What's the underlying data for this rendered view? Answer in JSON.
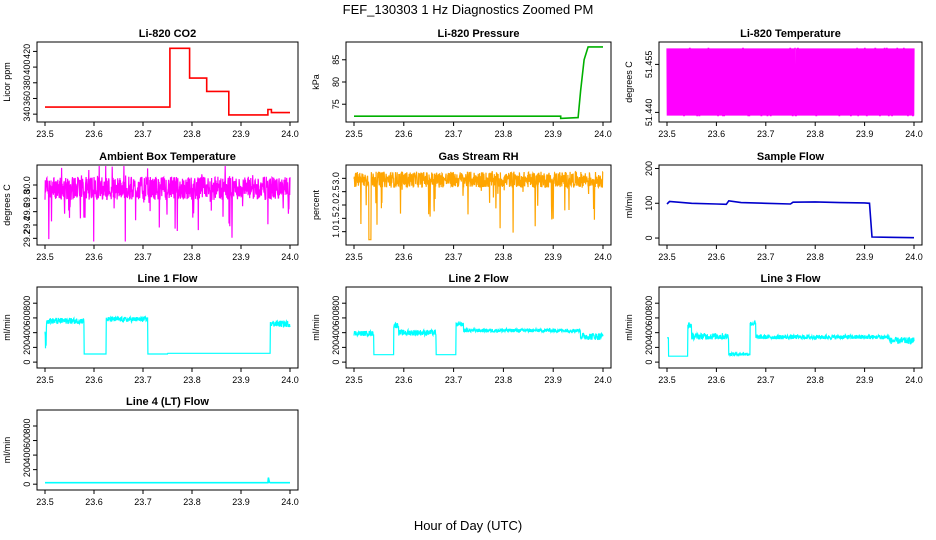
{
  "figure": {
    "title": "FEF_130303  1 Hz Diagnostics Zoomed PM",
    "xlabel": "Hour of Day (UTC)"
  },
  "chart_data": [
    {
      "type": "line",
      "title": "Li-820 CO2",
      "xlabel": "",
      "ylabel": "Licor ppm",
      "color": "#ff0000",
      "xlim": [
        23.5,
        24.0
      ],
      "ylim": [
        330,
        432
      ],
      "xticks": [
        "23.5",
        "23.6",
        "23.7",
        "23.8",
        "23.9",
        "24.0"
      ],
      "yticks": [
        "340",
        "360",
        "380",
        "400",
        "420"
      ],
      "series": [
        {
          "x": [
            23.5,
            23.755,
            23.755,
            23.795,
            23.795,
            23.83,
            23.83,
            23.875,
            23.875,
            23.955,
            23.955,
            23.962,
            23.962,
            24.0
          ],
          "y": [
            349,
            349,
            424,
            424,
            386,
            386,
            369,
            369,
            339,
            339,
            346,
            346,
            342,
            342
          ]
        }
      ]
    },
    {
      "type": "line",
      "title": "Li-820 Pressure",
      "xlabel": "",
      "ylabel": "kPa",
      "color": "#00b000",
      "xlim": [
        23.5,
        24.0
      ],
      "ylim": [
        71,
        89
      ],
      "xticks": [
        "23.5",
        "23.6",
        "23.7",
        "23.8",
        "23.9",
        "24.0"
      ],
      "yticks": [
        "75",
        "80",
        "85"
      ],
      "series": [
        {
          "x": [
            23.5,
            23.915,
            23.915,
            23.95,
            23.955,
            23.962,
            23.97,
            24.0
          ],
          "y": [
            72.3,
            72.3,
            71.8,
            72.0,
            78,
            85,
            87.9,
            87.9
          ]
        }
      ]
    },
    {
      "type": "line",
      "title": "Li-820 Temperature",
      "xlabel": "",
      "ylabel": "degrees C",
      "color": "#ff00ff",
      "xlim": [
        23.5,
        24.0
      ],
      "ylim": [
        51.437,
        51.462
      ],
      "xticks": [
        "23.5",
        "23.6",
        "23.7",
        "23.8",
        "23.9",
        "24.0"
      ],
      "yticks": [
        "51.440",
        "51.455"
      ],
      "series": [
        {
          "x": [],
          "y": []
        }
      ]
    },
    {
      "type": "line",
      "title": "Ambient Box Temperature",
      "xlabel": "",
      "ylabel": "degrees C",
      "color": "#ff00ff",
      "xlim": [
        23.5,
        24.0
      ],
      "ylim": [
        29.1,
        30.3
      ],
      "xticks": [
        "23.5",
        "23.6",
        "23.7",
        "23.8",
        "23.9",
        "24.0"
      ],
      "yticks": [
        "29.2",
        "29.4",
        "29.6",
        "29.8",
        "30.0"
      ],
      "series": [
        {
          "x": [],
          "y": []
        }
      ]
    },
    {
      "type": "line",
      "title": "Gas Stream RH",
      "xlabel": "",
      "ylabel": "percent",
      "color": "#ffa500",
      "xlim": [
        23.5,
        24.0
      ],
      "ylim": [
        0.5,
        3.5
      ],
      "xticks": [
        "23.5",
        "23.6",
        "23.7",
        "23.8",
        "23.9",
        "24.0"
      ],
      "yticks": [
        "1.0",
        "1.5",
        "2.0",
        "2.5",
        "3.0"
      ],
      "series": [
        {
          "x": [],
          "y": []
        }
      ]
    },
    {
      "type": "line",
      "title": "Sample Flow",
      "xlabel": "",
      "ylabel": "ml/min",
      "color": "#0000cc",
      "xlim": [
        23.5,
        24.0
      ],
      "ylim": [
        -20,
        210
      ],
      "xticks": [
        "23.5",
        "23.6",
        "23.7",
        "23.8",
        "23.9",
        "24.0"
      ],
      "yticks": [
        "0",
        "100",
        "200"
      ],
      "series": [
        {
          "x": [
            23.5,
            23.505,
            23.55,
            23.6,
            23.62,
            23.625,
            23.65,
            23.7,
            23.75,
            23.755,
            23.8,
            23.85,
            23.9,
            23.91,
            23.915,
            23.95,
            24.0
          ],
          "y": [
            98,
            105,
            100,
            98,
            97,
            107,
            102,
            100,
            98,
            103,
            104,
            102,
            101,
            100,
            3,
            2,
            1
          ]
        }
      ]
    },
    {
      "type": "line",
      "title": "Line 1 Flow",
      "xlabel": "",
      "ylabel": "ml/min",
      "color": "#00ffff",
      "xlim": [
        23.5,
        24.0
      ],
      "ylim": [
        -80,
        1020
      ],
      "xticks": [
        "23.5",
        "23.6",
        "23.7",
        "23.8",
        "23.9",
        "24.0"
      ],
      "yticks": [
        "0",
        "200",
        "400",
        "600",
        "800"
      ],
      "series": [
        {
          "x": [],
          "y": []
        }
      ]
    },
    {
      "type": "line",
      "title": "Line 2 Flow",
      "xlabel": "",
      "ylabel": "ml/min",
      "color": "#00ffff",
      "xlim": [
        23.5,
        24.0
      ],
      "ylim": [
        -80,
        1020
      ],
      "xticks": [
        "23.5",
        "23.6",
        "23.7",
        "23.8",
        "23.9",
        "24.0"
      ],
      "yticks": [
        "0",
        "200",
        "400",
        "600",
        "800"
      ],
      "series": [
        {
          "x": [],
          "y": []
        }
      ]
    },
    {
      "type": "line",
      "title": "Line 3 Flow",
      "xlabel": "",
      "ylabel": "ml/min",
      "color": "#00ffff",
      "xlim": [
        23.5,
        24.0
      ],
      "ylim": [
        -80,
        1020
      ],
      "xticks": [
        "23.5",
        "23.6",
        "23.7",
        "23.8",
        "23.9",
        "24.0"
      ],
      "yticks": [
        "0",
        "200",
        "400",
        "600",
        "800"
      ],
      "series": [
        {
          "x": [],
          "y": []
        }
      ]
    },
    {
      "type": "line",
      "title": "Line 4 (LT) Flow",
      "xlabel": "",
      "ylabel": "ml/min",
      "color": "#00ffff",
      "xlim": [
        23.5,
        24.0
      ],
      "ylim": [
        -80,
        1020
      ],
      "xticks": [
        "23.5",
        "23.6",
        "23.7",
        "23.8",
        "23.9",
        "24.0"
      ],
      "yticks": [
        "0",
        "200",
        "400",
        "600",
        "800"
      ],
      "series": [
        {
          "x": [
            23.5,
            23.955,
            23.956,
            23.958,
            23.96,
            24.0
          ],
          "y": [
            20,
            20,
            90,
            25,
            20,
            20
          ]
        }
      ]
    }
  ]
}
